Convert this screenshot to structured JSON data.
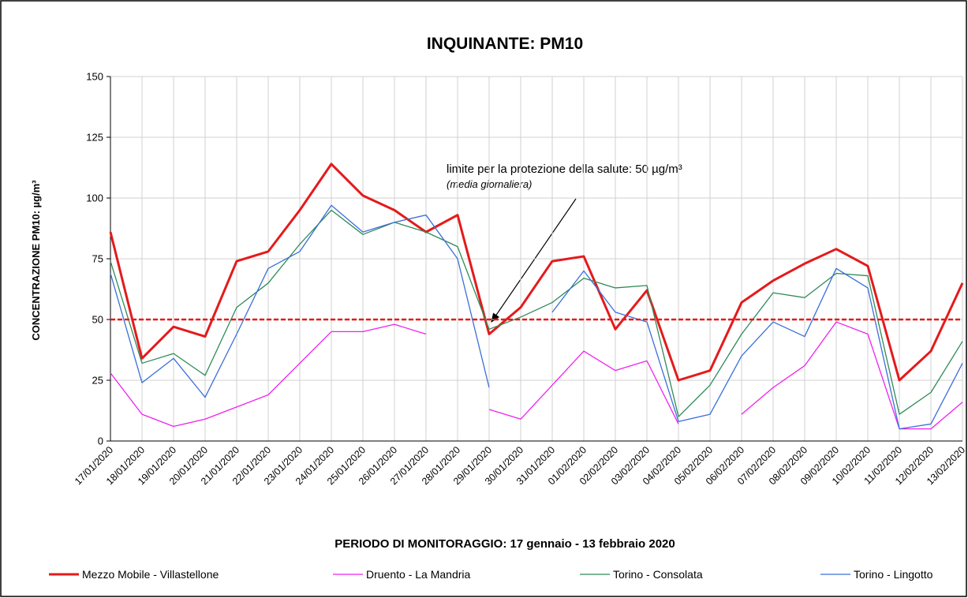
{
  "chart_data": {
    "type": "line",
    "title": "INQUINANTE: PM10",
    "ylabel": "CONCENTRAZIONE PM10: µg/m³",
    "xlabel": "PERIODO DI MONITORAGGIO: 17 gennaio - 13 febbraio 2020",
    "categories": [
      "17/01/2020",
      "18/01/2020",
      "19/01/2020",
      "20/01/2020",
      "21/01/2020",
      "22/01/2020",
      "23/01/2020",
      "24/01/2020",
      "25/01/2020",
      "26/01/2020",
      "27/01/2020",
      "28/01/2020",
      "29/01/2020",
      "30/01/2020",
      "31/01/2020",
      "01/02/2020",
      "02/02/2020",
      "03/02/2020",
      "04/02/2020",
      "05/02/2020",
      "06/02/2020",
      "07/02/2020",
      "08/02/2020",
      "09/02/2020",
      "10/02/2020",
      "11/02/2020",
      "12/02/2020",
      "13/02/2020"
    ],
    "series": [
      {
        "name": "Mezzo Mobile - Villastellone",
        "color": "#e41a1c",
        "width": 3,
        "values": [
          86,
          34,
          47,
          43,
          74,
          78,
          95,
          114,
          101,
          95,
          86,
          93,
          44,
          55,
          74,
          76,
          46,
          62,
          25,
          29,
          57,
          66,
          73,
          79,
          72,
          25,
          37,
          65
        ]
      },
      {
        "name": "Druento - La Mandria",
        "color": "#ee22ee",
        "width": 1.3,
        "values": [
          28,
          11,
          6,
          9,
          14,
          19,
          32,
          45,
          45,
          48,
          44,
          null,
          13,
          9,
          23,
          37,
          29,
          33,
          7,
          null,
          11,
          22,
          31,
          49,
          44,
          5,
          5,
          16
        ]
      },
      {
        "name": "Torino - Consolata",
        "color": "#2e8b57",
        "width": 1.3,
        "values": [
          74,
          32,
          36,
          27,
          55,
          65,
          81,
          95,
          85,
          90,
          86,
          80,
          46,
          51,
          57,
          67,
          63,
          64,
          10,
          23,
          44,
          61,
          59,
          69,
          68,
          11,
          20,
          41
        ]
      },
      {
        "name": "Torino - Lingotto",
        "color": "#3a6fd8",
        "width": 1.3,
        "values": [
          69,
          24,
          34,
          18,
          44,
          71,
          78,
          97,
          86,
          90,
          93,
          75,
          22,
          null,
          53,
          70,
          53,
          49,
          8,
          11,
          35,
          49,
          43,
          71,
          63,
          5,
          7,
          32
        ]
      }
    ],
    "limit_line": 50,
    "limit_color": "#e41a1c",
    "annotations": [
      "limite per la protezione della salute: 50 µg/m³",
      "(media giornaliera)"
    ],
    "ylim": [
      0,
      150
    ],
    "yticks": [
      0,
      25,
      50,
      75,
      100,
      125,
      150
    ],
    "grid": true,
    "legend": "bottom"
  }
}
